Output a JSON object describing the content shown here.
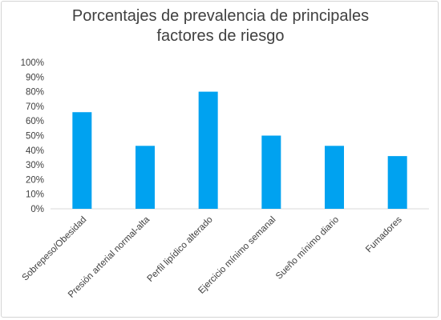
{
  "chart_data": {
    "type": "bar",
    "title_lines": [
      "Porcentajes de prevalencia de principales",
      "factores de riesgo"
    ],
    "categories": [
      "Sobrepeso/Obesidad",
      "Presión arterial normal-alta",
      "Perfil lipídico alterado",
      "Ejercicio mínimo semanal",
      "Sueño mínimo diario",
      "Fumadores"
    ],
    "values": [
      66,
      43,
      80,
      50,
      43,
      36
    ],
    "ylim": [
      0,
      100
    ],
    "yticks": [
      "0%",
      "10%",
      "20%",
      "30%",
      "40%",
      "50%",
      "60%",
      "70%",
      "80%",
      "90%",
      "100%"
    ],
    "grid": false,
    "legend": "none",
    "bar_color": "#00a2f0",
    "xlabel": "",
    "ylabel": ""
  }
}
